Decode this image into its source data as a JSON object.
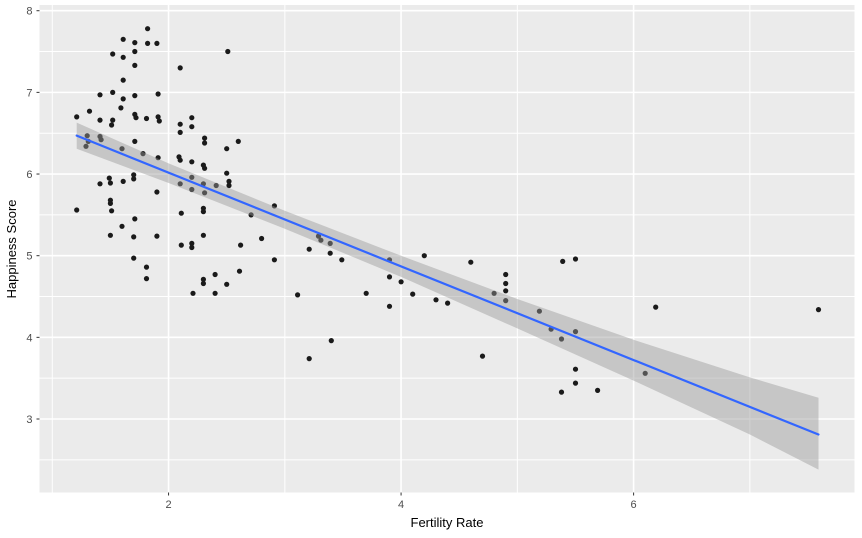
{
  "chart_data": {
    "type": "scatter",
    "title": "",
    "xlabel": "Fertility Rate",
    "ylabel": "Happiness Score",
    "x_ticks": [
      2,
      4,
      6
    ],
    "x_minor_ticks": [
      1,
      3,
      5,
      7
    ],
    "y_ticks": [
      3,
      4,
      5,
      6,
      7,
      8
    ],
    "y_minor_ticks": [
      2.5,
      3.5,
      4.5,
      5.5,
      6.5,
      7.5
    ],
    "x_range": [
      0.89,
      7.9
    ],
    "y_range": [
      2.1,
      8.07
    ],
    "grid": true,
    "legend": "none",
    "points": [
      [
        1.82,
        7.78
      ],
      [
        1.61,
        7.65
      ],
      [
        1.71,
        7.61
      ],
      [
        1.82,
        7.6
      ],
      [
        1.9,
        7.6
      ],
      [
        1.52,
        7.47
      ],
      [
        1.71,
        7.5
      ],
      [
        1.61,
        7.43
      ],
      [
        2.51,
        7.5
      ],
      [
        1.71,
        7.33
      ],
      [
        2.1,
        7.3
      ],
      [
        1.61,
        7.15
      ],
      [
        1.41,
        6.97
      ],
      [
        1.52,
        7.0
      ],
      [
        1.61,
        6.92
      ],
      [
        1.71,
        6.96
      ],
      [
        1.91,
        6.98
      ],
      [
        1.21,
        6.7
      ],
      [
        1.32,
        6.77
      ],
      [
        1.59,
        6.81
      ],
      [
        1.71,
        6.73
      ],
      [
        1.72,
        6.69
      ],
      [
        1.41,
        6.66
      ],
      [
        1.52,
        6.66
      ],
      [
        1.81,
        6.68
      ],
      [
        1.91,
        6.7
      ],
      [
        1.92,
        6.65
      ],
      [
        1.51,
        6.6
      ],
      [
        2.1,
        6.61
      ],
      [
        2.1,
        6.51
      ],
      [
        2.2,
        6.69
      ],
      [
        2.2,
        6.58
      ],
      [
        2.31,
        6.44
      ],
      [
        2.31,
        6.38
      ],
      [
        2.6,
        6.4
      ],
      [
        2.5,
        6.31
      ],
      [
        1.3,
        6.47
      ],
      [
        1.31,
        6.4
      ],
      [
        1.41,
        6.46
      ],
      [
        1.42,
        6.42
      ],
      [
        1.29,
        6.34
      ],
      [
        1.6,
        6.31
      ],
      [
        1.71,
        6.4
      ],
      [
        1.78,
        6.25
      ],
      [
        1.91,
        6.2
      ],
      [
        2.09,
        6.21
      ],
      [
        2.1,
        6.17
      ],
      [
        2.2,
        6.15
      ],
      [
        2.3,
        6.11
      ],
      [
        2.31,
        6.07
      ],
      [
        2.5,
        6.01
      ],
      [
        1.49,
        5.95
      ],
      [
        1.5,
        5.89
      ],
      [
        1.41,
        5.88
      ],
      [
        1.61,
        5.91
      ],
      [
        1.7,
        5.99
      ],
      [
        1.7,
        5.94
      ],
      [
        2.1,
        5.88
      ],
      [
        2.2,
        5.96
      ],
      [
        2.2,
        5.81
      ],
      [
        2.3,
        5.88
      ],
      [
        2.31,
        5.77
      ],
      [
        2.41,
        5.86
      ],
      [
        2.52,
        5.91
      ],
      [
        2.52,
        5.86
      ],
      [
        2.91,
        5.61
      ],
      [
        1.9,
        5.78
      ],
      [
        1.5,
        5.68
      ],
      [
        1.5,
        5.64
      ],
      [
        1.51,
        5.55
      ],
      [
        1.21,
        5.56
      ],
      [
        2.11,
        5.52
      ],
      [
        2.3,
        5.58
      ],
      [
        2.3,
        5.54
      ],
      [
        2.71,
        5.5
      ],
      [
        1.71,
        5.45
      ],
      [
        1.6,
        5.36
      ],
      [
        1.5,
        5.25
      ],
      [
        1.7,
        5.23
      ],
      [
        1.9,
        5.24
      ],
      [
        2.11,
        5.13
      ],
      [
        2.2,
        5.15
      ],
      [
        2.2,
        5.1
      ],
      [
        2.3,
        5.25
      ],
      [
        2.62,
        5.13
      ],
      [
        2.8,
        5.21
      ],
      [
        3.21,
        5.08
      ],
      [
        3.29,
        5.24
      ],
      [
        3.31,
        5.19
      ],
      [
        3.39,
        5.15
      ],
      [
        3.39,
        5.03
      ],
      [
        1.7,
        4.97
      ],
      [
        2.91,
        4.95
      ],
      [
        3.49,
        4.95
      ],
      [
        3.9,
        4.95
      ],
      [
        4.2,
        5.0
      ],
      [
        4.6,
        4.92
      ],
      [
        1.81,
        4.86
      ],
      [
        1.81,
        4.72
      ],
      [
        2.3,
        4.71
      ],
      [
        2.3,
        4.66
      ],
      [
        2.4,
        4.77
      ],
      [
        2.5,
        4.65
      ],
      [
        2.61,
        4.81
      ],
      [
        3.9,
        4.74
      ],
      [
        4.0,
        4.68
      ],
      [
        3.11,
        4.52
      ],
      [
        3.7,
        4.54
      ],
      [
        4.1,
        4.53
      ],
      [
        4.3,
        4.46
      ],
      [
        4.4,
        4.42
      ],
      [
        3.9,
        4.38
      ],
      [
        2.21,
        4.54
      ],
      [
        2.4,
        4.54
      ],
      [
        5.39,
        4.93
      ],
      [
        5.5,
        4.96
      ],
      [
        4.9,
        4.77
      ],
      [
        4.9,
        4.66
      ],
      [
        4.9,
        4.57
      ],
      [
        4.8,
        4.54
      ],
      [
        4.9,
        4.45
      ],
      [
        5.19,
        4.32
      ],
      [
        6.19,
        4.37
      ],
      [
        7.59,
        4.34
      ],
      [
        5.29,
        4.1
      ],
      [
        5.5,
        4.07
      ],
      [
        5.38,
        3.98
      ],
      [
        3.4,
        3.96
      ],
      [
        3.21,
        3.74
      ],
      [
        4.7,
        3.77
      ],
      [
        5.5,
        3.61
      ],
      [
        5.5,
        3.44
      ],
      [
        5.38,
        3.33
      ],
      [
        5.69,
        3.35
      ],
      [
        6.1,
        3.56
      ]
    ],
    "trend_line": {
      "fit": "linear",
      "x": [
        1.21,
        7.59
      ],
      "y": [
        6.47,
        2.81
      ],
      "slope": -0.574,
      "intercept": 7.16
    },
    "confidence_band": {
      "upper": [
        [
          1.21,
          6.63
        ],
        [
          2,
          6.13
        ],
        [
          3,
          5.55
        ],
        [
          4,
          5.0
        ],
        [
          5,
          4.47
        ],
        [
          6,
          3.97
        ],
        [
          7,
          3.51
        ],
        [
          7.59,
          3.26
        ]
      ],
      "lower": [
        [
          1.21,
          6.31
        ],
        [
          2,
          5.89
        ],
        [
          3,
          5.33
        ],
        [
          4,
          4.74
        ],
        [
          5,
          4.11
        ],
        [
          6,
          3.47
        ],
        [
          7,
          2.81
        ],
        [
          7.59,
          2.38
        ]
      ]
    },
    "colors": {
      "panel_bg": "#EBEBEB",
      "grid": "#FFFFFF",
      "point": "#1A1A1A",
      "line": "#3366FF",
      "ribbon_fill": "#999999",
      "ribbon_opacity": 0.45,
      "tick_mark": "#333333",
      "tick_label": "#4D4D4D",
      "axis_title": "#000000",
      "outer_bg": "#FFFFFF"
    }
  }
}
